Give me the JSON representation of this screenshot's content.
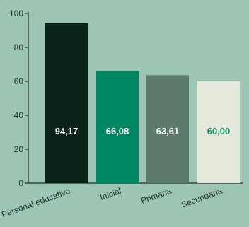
{
  "chart_data": {
    "type": "bar",
    "title": "",
    "xlabel": "",
    "ylabel": "",
    "categories": [
      "Personal educativo",
      "Inicial",
      "Primaria",
      "Secundaria"
    ],
    "values": [
      94.17,
      66.08,
      63.61,
      60.0
    ],
    "value_labels": [
      "94,17",
      "66,08",
      "63,61",
      "60,00"
    ],
    "ylim": [
      0,
      100
    ],
    "yticks": [
      0,
      20,
      40,
      60,
      80,
      100
    ],
    "ytick_labels": [
      "0",
      "20",
      "40",
      "60",
      "80",
      "100"
    ],
    "grid": false,
    "legend": "none",
    "colors": {
      "background": "#9dc5b4",
      "axis": "#1f2f2a",
      "bars": [
        "#0b2419",
        "#008663",
        "#5d7b6d",
        "#e6e8dc"
      ],
      "value_text": [
        "#ffffff",
        "#ffffff",
        "#ffffff",
        "#0a8a62"
      ]
    }
  }
}
